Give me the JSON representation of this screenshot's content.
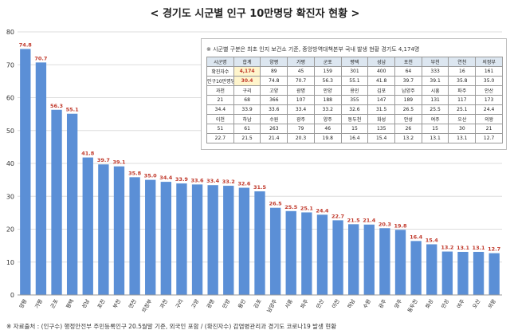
{
  "title": "< 경기도 시군별 인구 10만명당 확진자 현황 >",
  "footnote": "※ 자료출처 : (인구수) 행정안전부 주민등록인구 20.5월말 기준, 외국인 포함 / (확진자수) 감염병관리과 경기도 코로나19 발생 현황",
  "table": {
    "note": "※ 시군별 구분은 최초 인지 보건소 기준, 중앙방역대책본부 국내 발생 현황 경기도 4,174명",
    "rows": [
      [
        "시군명",
        "합계",
        "양평",
        "가평",
        "군포",
        "평택",
        "성남",
        "포천",
        "부천",
        "연천",
        "의정부"
      ],
      [
        "확진자수",
        "4,174",
        "89",
        "45",
        "159",
        "301",
        "400",
        "64",
        "333",
        "16",
        "161"
      ],
      [
        "인구10만명당",
        "30.4",
        "74.8",
        "70.7",
        "56.3",
        "55.1",
        "41.8",
        "39.7",
        "39.1",
        "35.8",
        "35.0"
      ],
      [
        "과천",
        "구리",
        "고양",
        "광명",
        "안양",
        "용인",
        "김포",
        "남양주",
        "시흥",
        "파주",
        "안산"
      ],
      [
        "21",
        "68",
        "366",
        "107",
        "188",
        "355",
        "147",
        "189",
        "131",
        "117",
        "173"
      ],
      [
        "34.4",
        "33.9",
        "33.6",
        "33.4",
        "33.2",
        "32.6",
        "31.5",
        "26.5",
        "25.5",
        "25.1",
        "24.4"
      ],
      [
        "이천",
        "하남",
        "수원",
        "광주",
        "양주",
        "동두천",
        "화성",
        "안성",
        "여주",
        "오산",
        "의왕"
      ],
      [
        "51",
        "61",
        "263",
        "79",
        "46",
        "15",
        "135",
        "26",
        "15",
        "30",
        "21"
      ],
      [
        "22.7",
        "21.5",
        "21.4",
        "20.3",
        "19.8",
        "16.4",
        "15.4",
        "13.2",
        "13.1",
        "13.1",
        "12.7"
      ]
    ],
    "header_rows": [
      0
    ],
    "highlight_cells": [
      [
        1,
        1
      ],
      [
        2,
        1
      ]
    ]
  },
  "chart_data": {
    "type": "bar",
    "title": "< 경기도 시군별 인구 10만명당 확진자 현황 >",
    "xlabel": "",
    "ylabel": "",
    "ylim": [
      0,
      80
    ],
    "yticks": [
      0,
      10,
      20,
      30,
      40,
      50,
      60,
      70,
      80
    ],
    "grid": true,
    "categories": [
      "양평",
      "가평",
      "군포",
      "평택",
      "성남",
      "포천",
      "부천",
      "연천",
      "의정부",
      "과천",
      "구리",
      "고양",
      "광명",
      "안양",
      "용인",
      "김포",
      "남양주",
      "시흥",
      "파주",
      "안산",
      "이천",
      "하남",
      "수원",
      "광주",
      "양주",
      "동두천",
      "화성",
      "안성",
      "여주",
      "오산",
      "의왕"
    ],
    "values": [
      74.8,
      70.7,
      56.3,
      55.1,
      41.8,
      39.7,
      39.1,
      35.8,
      35.0,
      34.4,
      33.9,
      33.6,
      33.4,
      33.2,
      32.6,
      31.5,
      26.5,
      25.5,
      25.1,
      24.4,
      22.7,
      21.5,
      21.4,
      20.3,
      19.8,
      16.4,
      15.4,
      13.2,
      13.1,
      13.1,
      12.7
    ],
    "value_labels": [
      "74.8",
      "70.7",
      "56.3",
      "55.1",
      "41.8",
      "39.7",
      "39.1",
      "35.8",
      "35.0",
      "34.4",
      "33.9",
      "33.6",
      "33.4",
      "33.2",
      "32.6",
      "31.5",
      "26.5",
      "25.5",
      "25.1",
      "24.4",
      "22.7",
      "21.5",
      "21.4",
      "20.3",
      "19.8",
      "16.4",
      "15.4",
      "13.2",
      "13.1",
      "13.1",
      "12.7"
    ],
    "bar_color": "#5b8fd6",
    "value_label_color": "#c0392b"
  }
}
